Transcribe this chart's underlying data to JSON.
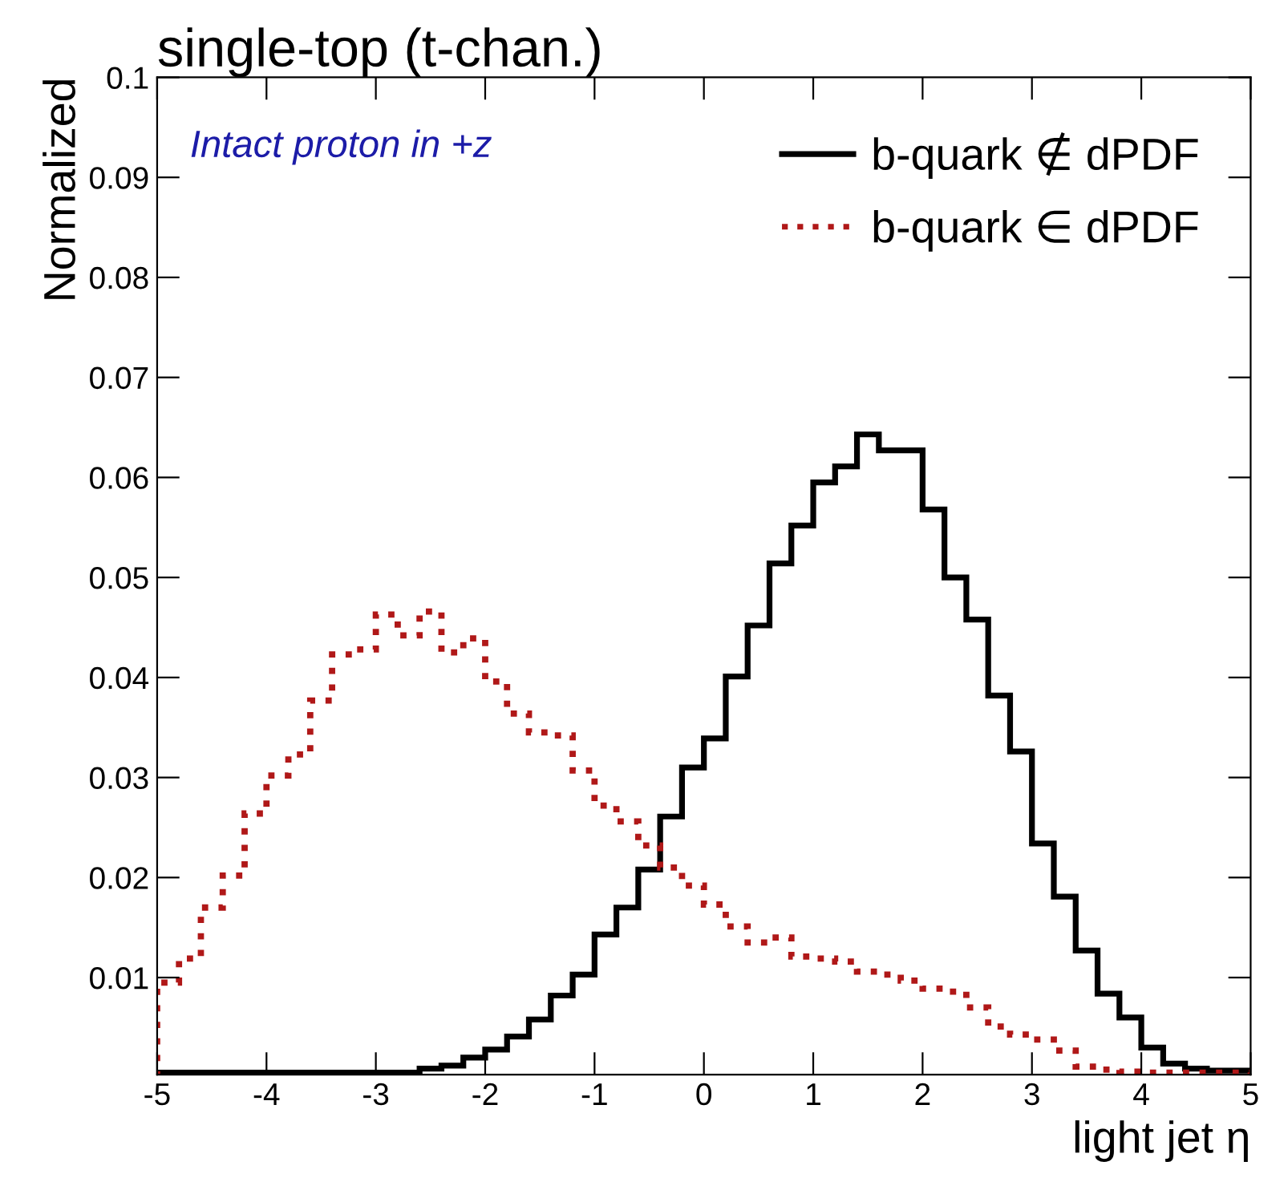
{
  "chart_data": {
    "type": "histogram",
    "title": "single-top (t-chan.)",
    "xlabel": "light jet η",
    "ylabel": "Normalized",
    "annotations": [
      "Intact proton in +z"
    ],
    "bins": [
      -5.0,
      -4.8,
      -4.6,
      -4.4,
      -4.2,
      -4.0,
      -3.8,
      -3.6,
      -3.4,
      -3.2,
      -3.0,
      -2.8,
      -2.6,
      -2.4,
      -2.2,
      -2.0,
      -1.8,
      -1.6,
      -1.4,
      -1.2,
      -1.0,
      -0.8,
      -0.6,
      -0.4,
      -0.2,
      0.0,
      0.2,
      0.4,
      0.6,
      0.8,
      1.0,
      1.2,
      1.4,
      1.6,
      1.8,
      2.0,
      2.2,
      2.4,
      2.6,
      2.8,
      3.0,
      3.2,
      3.4,
      3.6,
      3.8,
      4.0,
      4.2,
      4.4,
      4.6,
      4.8,
      5.0
    ],
    "series": [
      {
        "name": "b-quark ∉ dPDF",
        "color": "#000000",
        "line_style": "solid",
        "values": [
          0.0005,
          0.0005,
          0.0005,
          0.0005,
          0.0005,
          0.0005,
          0.0005,
          0.0005,
          0.0005,
          0.0005,
          0.0005,
          0.0005,
          0.0009,
          0.0012,
          0.002,
          0.0028,
          0.0041,
          0.0058,
          0.0082,
          0.0103,
          0.0143,
          0.017,
          0.0208,
          0.0261,
          0.031,
          0.0339,
          0.0401,
          0.0452,
          0.0514,
          0.0552,
          0.0595,
          0.0611,
          0.0643,
          0.0627,
          0.0627,
          0.0568,
          0.05,
          0.0458,
          0.0382,
          0.0326,
          0.0234,
          0.0181,
          0.0127,
          0.0084,
          0.006,
          0.003,
          0.0014,
          0.0009,
          0.0007,
          0.0007
        ]
      },
      {
        "name": "b-quark ∈ dPDF",
        "color": "#b01818",
        "line_style": "dotted",
        "values": [
          0.0095,
          0.0119,
          0.017,
          0.0202,
          0.0264,
          0.0302,
          0.0323,
          0.0377,
          0.0423,
          0.0428,
          0.0463,
          0.0442,
          0.0466,
          0.0425,
          0.0439,
          0.0396,
          0.0364,
          0.0345,
          0.0342,
          0.0307,
          0.0272,
          0.0256,
          0.0232,
          0.021,
          0.0192,
          0.0173,
          0.0151,
          0.0135,
          0.014,
          0.0121,
          0.0119,
          0.0116,
          0.0106,
          0.0103,
          0.0097,
          0.0089,
          0.0086,
          0.007,
          0.0051,
          0.0043,
          0.0038,
          0.0027,
          0.0011,
          0.0008,
          0.0006,
          0.0005,
          0.0005,
          0.0005,
          0.0005,
          0.0005
        ]
      }
    ],
    "xlim": [
      -5,
      5
    ],
    "xticks": [
      -5,
      -4,
      -3,
      -2,
      -1,
      0,
      1,
      2,
      3,
      4,
      5
    ],
    "ylim": [
      0.0003,
      0.1
    ],
    "yticks": [
      0.01,
      0.02,
      0.03,
      0.04,
      0.05,
      0.06,
      0.07,
      0.08,
      0.09,
      0.1
    ],
    "grid": false,
    "legend": "top right"
  }
}
